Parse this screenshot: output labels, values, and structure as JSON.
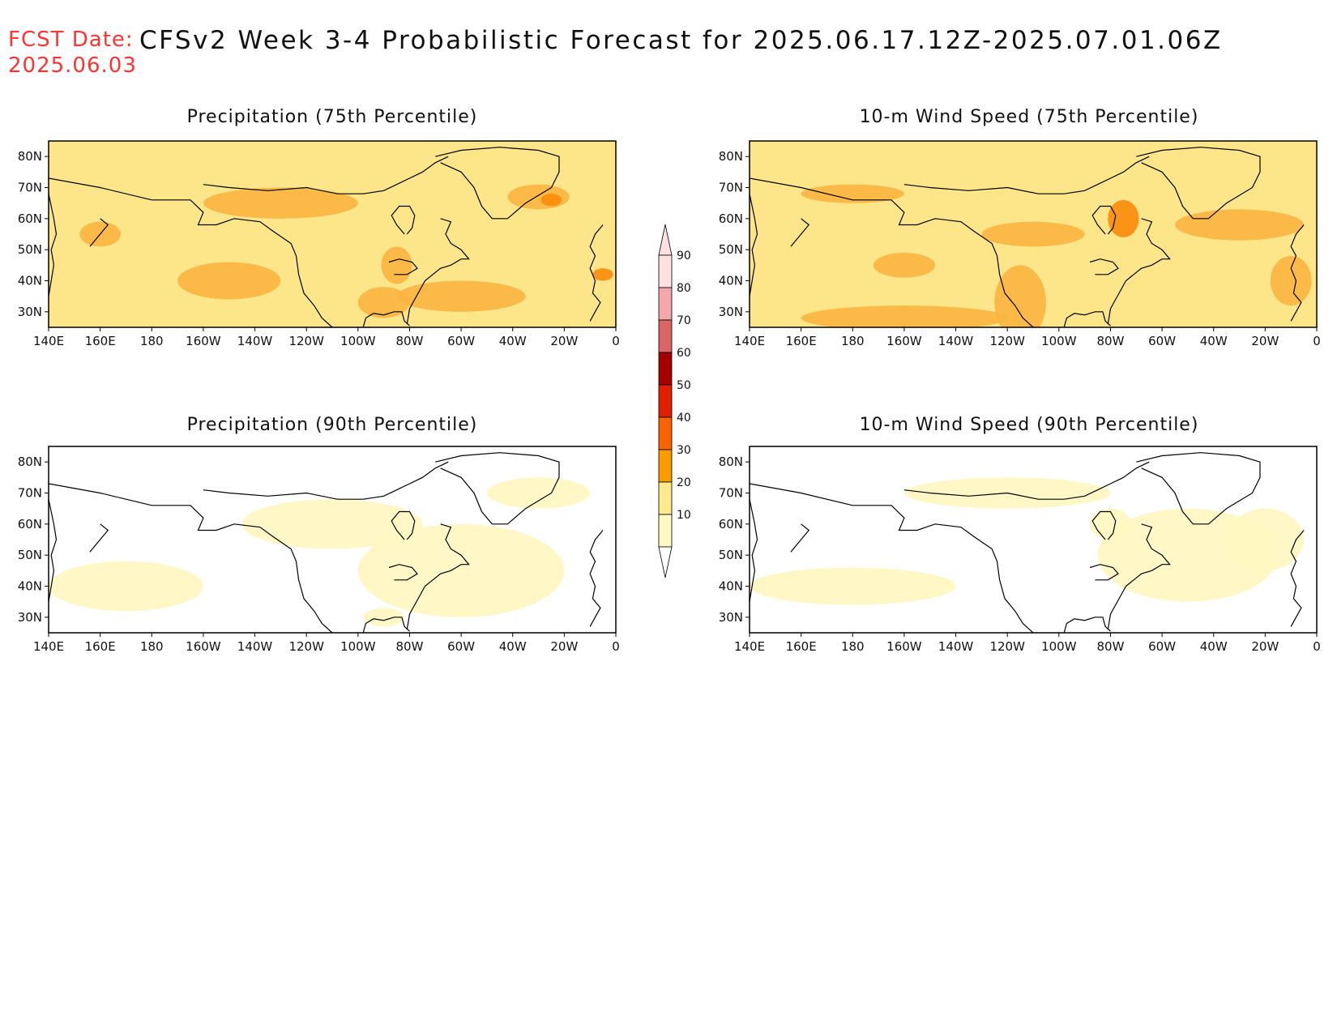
{
  "header": {
    "fcst_label": "FCST Date:",
    "fcst_date": "2025.06.03",
    "title": "CFSv2 Week 3-4 Probabilistic Forecast for 2025.06.17.12Z-2025.07.01.06Z"
  },
  "panels": [
    {
      "title": "Precipitation (75th Percentile)",
      "style": "high"
    },
    {
      "title": "10-m Wind Speed (75th Percentile)",
      "style": "high"
    },
    {
      "title": "Precipitation (90th Percentile)",
      "style": "low"
    },
    {
      "title": "10-m Wind Speed (90th Percentile)",
      "style": "low"
    }
  ],
  "axes": {
    "lon_labels": [
      "140E",
      "160E",
      "180",
      "160W",
      "140W",
      "120W",
      "100W",
      "80W",
      "60W",
      "40W",
      "20W",
      "0"
    ],
    "lat_labels": [
      "80N",
      "70N",
      "60N",
      "50N",
      "40N",
      "30N"
    ]
  },
  "colorbar": {
    "labels": [
      "90",
      "80",
      "70",
      "60",
      "50",
      "40",
      "30",
      "20",
      "10"
    ],
    "colors": [
      "#fde0e0",
      "#f4a7aa",
      "#db6464",
      "#a50000",
      "#e02000",
      "#fa6400",
      "#fa9b00",
      "#fee98c",
      "#fef9c3"
    ]
  },
  "palette": {
    "c10": "#fff7c0",
    "c20": "#fde68a",
    "c30": "#fbb540",
    "c40": "#f98b0a",
    "c50": "#e63d0a",
    "land_outline": "#000000"
  }
}
